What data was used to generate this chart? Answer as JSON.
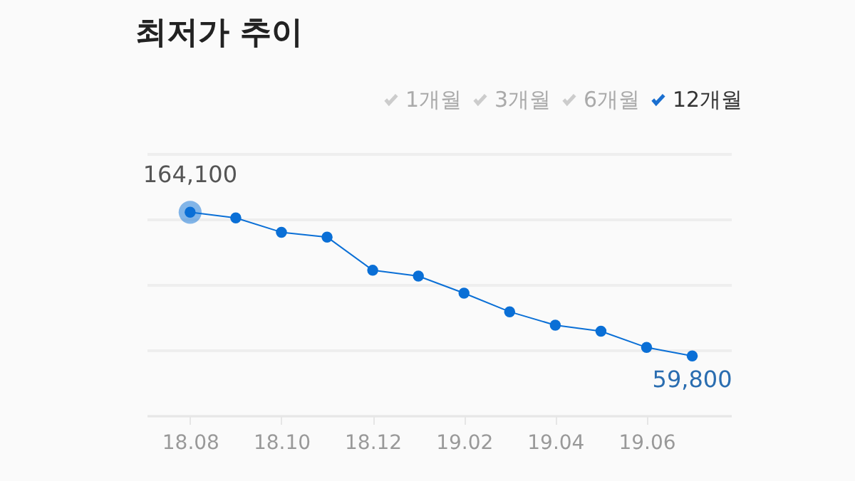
{
  "chart_data": {
    "type": "line",
    "title": "최저가 추이",
    "annotations": [
      "1개월",
      "3개월",
      "6개월",
      "12개월"
    ],
    "categories": [
      "18.08",
      null,
      "18.10",
      null,
      "18.12",
      null,
      "19.02",
      null,
      "19.04",
      null,
      "19.06",
      null
    ],
    "series": [
      {
        "color": "#0a6fd6",
        "values": [
          164100,
          160000,
          149600,
          146100,
          122000,
          117800,
          105400,
          91900,
          82200,
          77800,
          66000,
          59800
        ],
        "value_labels": [
          "164,100",
          null,
          null,
          null,
          null,
          null,
          null,
          null,
          null,
          null,
          null,
          "59,800"
        ]
      }
    ],
    "ylim": [
      16600,
      206600
    ],
    "yticks": [
      {
        "value": 16600,
        "label": null
      },
      {
        "value": 64100,
        "label": null
      },
      {
        "value": 111600,
        "label": null
      },
      {
        "value": 159100,
        "label": null
      },
      {
        "value": 206600,
        "label": null
      }
    ],
    "grid": "y",
    "tick_labels": "x",
    "marker": "circle",
    "line_style": "solid"
  }
}
